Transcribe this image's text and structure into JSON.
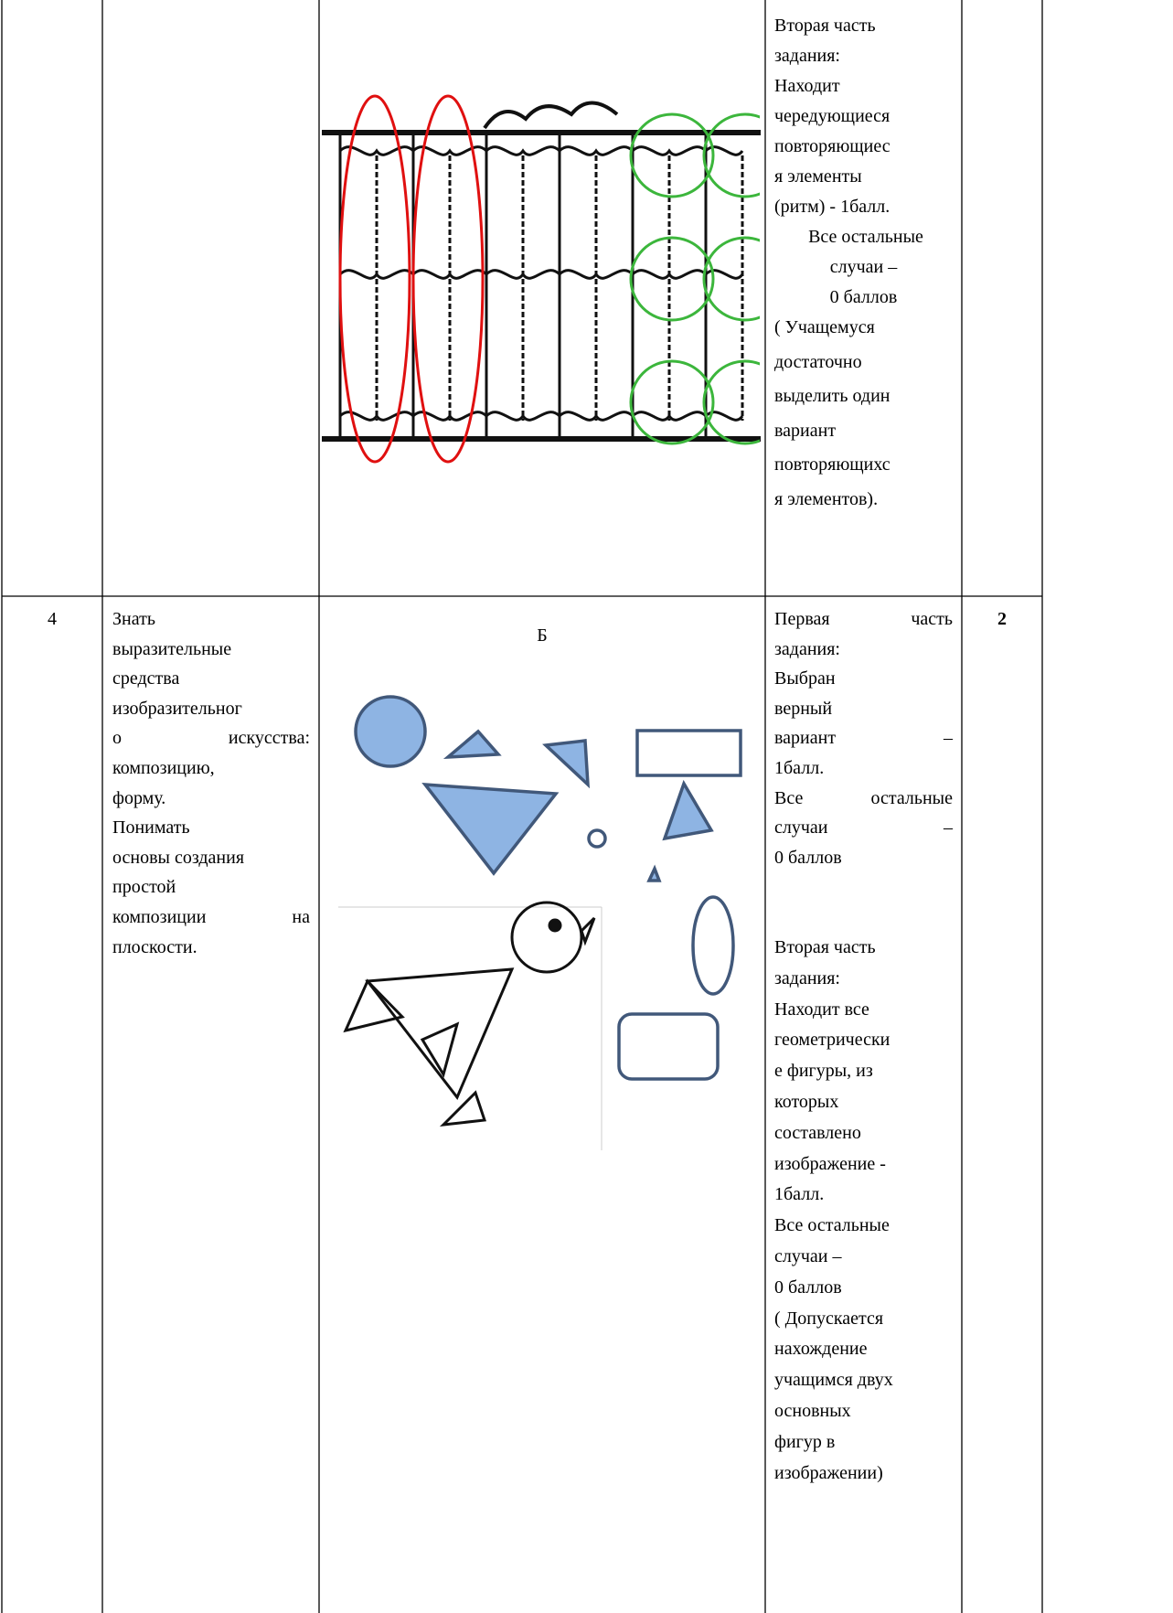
{
  "rows": [
    {
      "criteria": [
        [
          "Вторая часть",
          "задания:",
          "Находит",
          "чередующиеся",
          "повторяющиес",
          "я элементы",
          "(ритм) - 1балл.",
          " Все остальные",
          "случаи –",
          "0 баллов",
          "( Учащемуся",
          "достаточно",
          "выделить один",
          "вариант",
          "повторяющихс",
          "я элементов)."
        ]
      ]
    },
    {
      "number": "4",
      "description": [
        "Знать",
        "выразительные",
        "средства",
        "изобразительног",
        "о искусства:",
        "композицию,",
        "форму.",
        "Понимать",
        "основы создания",
        "простой",
        "композиции на",
        "плоскости."
      ],
      "image_label": "Б",
      "criteria": [
        [
          "Первая часть",
          "задания:",
          "Выбран",
          "верный",
          "вариант –",
          "1балл.",
          "Все остальные",
          "случаи –",
          "0 баллов"
        ],
        [
          "Вторая часть",
          "задания:",
          "Находит все",
          "геометрически",
          "е фигуры, из",
          "которых",
          "составлено",
          "изображение -",
          "1балл.",
          "Все остальные",
          "случаи –",
          "0 баллов",
          "( Допускается",
          "нахождение",
          "учащимся двух",
          "основных",
          "фигур в",
          "изображении)"
        ]
      ],
      "score": "2"
    }
  ]
}
